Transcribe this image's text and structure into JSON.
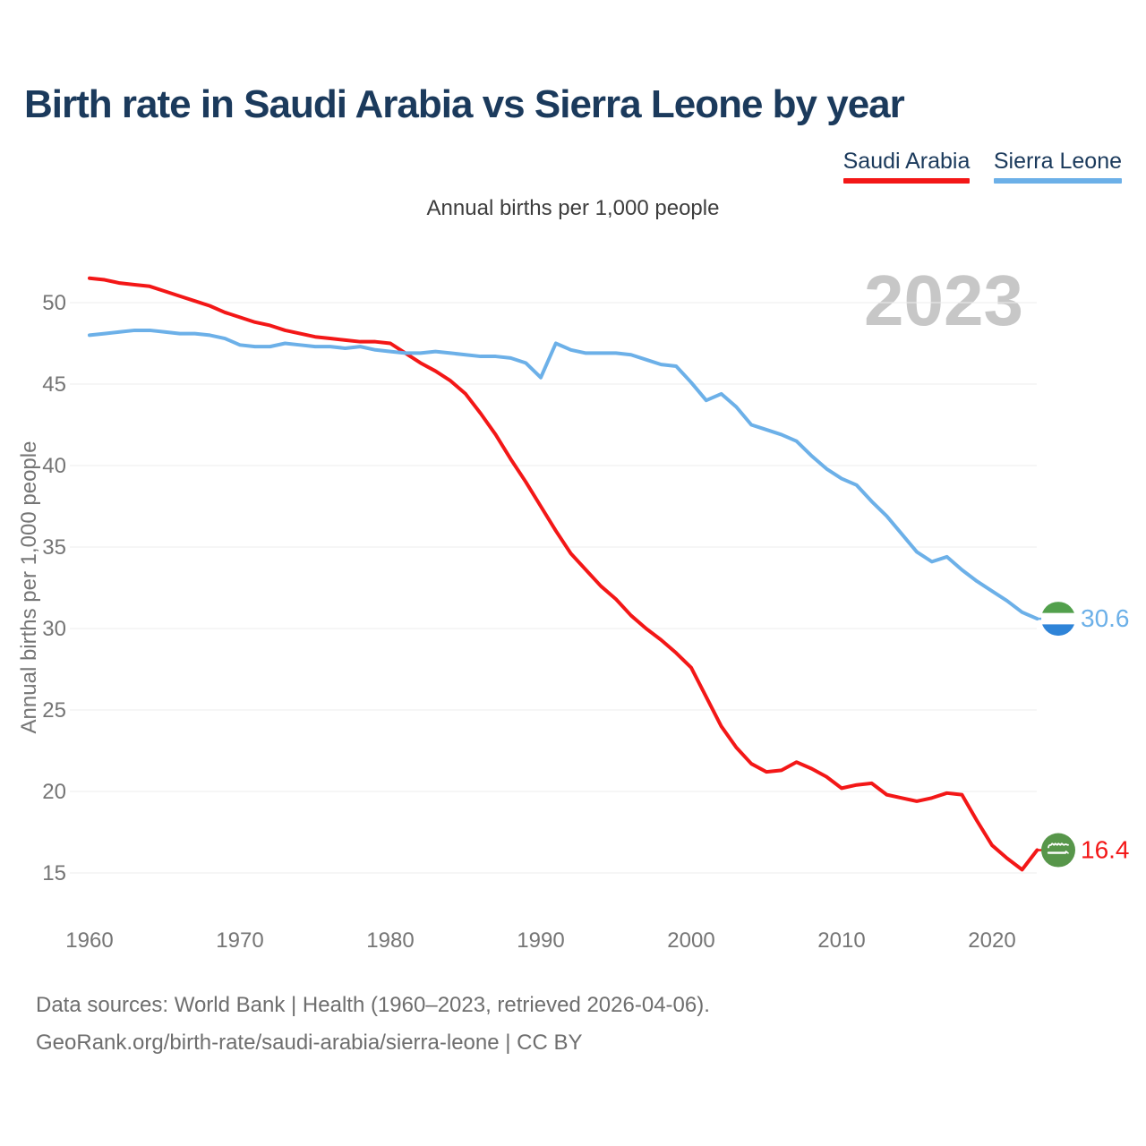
{
  "header": {
    "title": "Birth rate in Saudi Arabia vs Sierra Leone by year",
    "subtitle": "Annual births per 1,000 people",
    "legend": [
      {
        "label": "Saudi Arabia",
        "color": "#f31717"
      },
      {
        "label": "Sierra Leone",
        "color": "#6cb0e8"
      }
    ]
  },
  "chart_data": {
    "type": "line",
    "title": "Birth rate in Saudi Arabia vs Sierra Leone by year",
    "ylabel": "Annual births per 1,000 people",
    "xlabel": "",
    "watermark": "2023",
    "grid": "horizontal",
    "legend_position": "top-right",
    "xlim": [
      1960,
      2023
    ],
    "ylim": [
      14,
      52.5
    ],
    "xticks": [
      1960,
      1970,
      1980,
      1990,
      2000,
      2010,
      2020
    ],
    "yticks": [
      15,
      20,
      25,
      30,
      35,
      40,
      45,
      50
    ],
    "years": [
      1960,
      1961,
      1962,
      1963,
      1964,
      1965,
      1966,
      1967,
      1968,
      1969,
      1970,
      1971,
      1972,
      1973,
      1974,
      1975,
      1976,
      1977,
      1978,
      1979,
      1980,
      1981,
      1982,
      1983,
      1984,
      1985,
      1986,
      1987,
      1988,
      1989,
      1990,
      1991,
      1992,
      1993,
      1994,
      1995,
      1996,
      1997,
      1998,
      1999,
      2000,
      2001,
      2002,
      2003,
      2004,
      2005,
      2006,
      2007,
      2008,
      2009,
      2010,
      2011,
      2012,
      2013,
      2014,
      2015,
      2016,
      2017,
      2018,
      2019,
      2020,
      2021,
      2022,
      2023
    ],
    "series": [
      {
        "name": "Saudi Arabia",
        "color": "#f31717",
        "end_label": "16.4",
        "end_value": 16.4,
        "flag": "saudi-arabia",
        "flag_colors": [
          "#57964a",
          "#ffffff"
        ],
        "values": [
          51.5,
          51.4,
          51.2,
          51.1,
          51.0,
          50.7,
          50.4,
          50.1,
          49.8,
          49.4,
          49.1,
          48.8,
          48.6,
          48.3,
          48.1,
          47.9,
          47.8,
          47.7,
          47.6,
          47.6,
          47.5,
          46.9,
          46.3,
          45.8,
          45.2,
          44.4,
          43.2,
          41.9,
          40.4,
          39.0,
          37.5,
          36.0,
          34.6,
          33.6,
          32.6,
          31.8,
          30.8,
          30.0,
          29.3,
          28.5,
          27.6,
          25.8,
          24.0,
          22.7,
          21.7,
          21.2,
          21.3,
          21.8,
          21.4,
          20.9,
          20.2,
          20.4,
          20.5,
          19.8,
          19.6,
          19.4,
          19.6,
          19.9,
          19.8,
          18.2,
          16.7,
          15.9,
          15.2,
          16.4
        ]
      },
      {
        "name": "Sierra Leone",
        "color": "#6cb0e8",
        "end_label": "30.6",
        "end_value": 30.6,
        "flag": "sierra-leone",
        "flag_colors": [
          "#52a04c",
          "#ffffff",
          "#2f84d8"
        ],
        "values": [
          48.0,
          48.1,
          48.2,
          48.3,
          48.3,
          48.2,
          48.1,
          48.1,
          48.0,
          47.8,
          47.4,
          47.3,
          47.3,
          47.5,
          47.4,
          47.3,
          47.3,
          47.2,
          47.3,
          47.1,
          47.0,
          46.9,
          46.9,
          47.0,
          46.9,
          46.8,
          46.7,
          46.7,
          46.6,
          46.3,
          45.4,
          47.5,
          47.1,
          46.9,
          46.9,
          46.9,
          46.8,
          46.5,
          46.2,
          46.1,
          45.1,
          44.0,
          44.4,
          43.6,
          42.5,
          42.2,
          41.9,
          41.5,
          40.6,
          39.8,
          39.2,
          38.8,
          37.8,
          36.9,
          35.8,
          34.7,
          34.1,
          34.4,
          33.6,
          32.9,
          32.3,
          31.7,
          31.0,
          30.6
        ]
      }
    ]
  },
  "footer": {
    "line1": "Data sources: World Bank | Health (1960–2023, retrieved 2026-04-06).",
    "line2": "GeoRank.org/birth-rate/saudi-arabia/sierra-leone | CC BY"
  }
}
